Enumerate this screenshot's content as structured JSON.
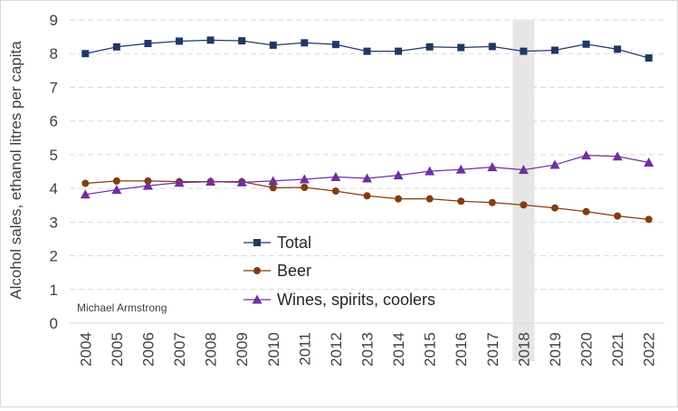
{
  "chart_data": {
    "type": "line",
    "title": "",
    "xlabel": "",
    "ylabel": "Alcohol sales, ethanol litres per capita",
    "ylim": [
      0,
      9
    ],
    "yticks": [
      0,
      1,
      2,
      3,
      4,
      5,
      6,
      7,
      8,
      9
    ],
    "grid": true,
    "legend_position": "lower-center",
    "highlight_category": "2018",
    "annotation": "Michael Armstrong",
    "categories": [
      "2004",
      "2005",
      "2006",
      "2007",
      "2008",
      "2009",
      "2010",
      "2011",
      "2012",
      "2013",
      "2014",
      "2015",
      "2016",
      "2017",
      "2018",
      "2019",
      "2020",
      "2021",
      "2022"
    ],
    "series": [
      {
        "name": "Total",
        "color": "#203864",
        "marker": "square",
        "values": [
          8.0,
          8.2,
          8.3,
          8.37,
          8.4,
          8.38,
          8.25,
          8.32,
          8.27,
          8.07,
          8.07,
          8.2,
          8.18,
          8.21,
          8.07,
          8.1,
          8.28,
          8.13,
          7.87
        ]
      },
      {
        "name": "Beer",
        "color": "#843c0c",
        "marker": "circle",
        "values": [
          4.15,
          4.22,
          4.22,
          4.2,
          4.2,
          4.2,
          4.02,
          4.03,
          3.92,
          3.78,
          3.69,
          3.69,
          3.62,
          3.58,
          3.51,
          3.42,
          3.31,
          3.18,
          3.08
        ]
      },
      {
        "name": "Wines, spirits, coolers",
        "color": "#7030a0",
        "marker": "triangle",
        "values": [
          3.82,
          3.96,
          4.08,
          4.17,
          4.2,
          4.18,
          4.22,
          4.27,
          4.34,
          4.3,
          4.39,
          4.51,
          4.56,
          4.63,
          4.55,
          4.7,
          4.98,
          4.95,
          4.77
        ]
      }
    ]
  }
}
